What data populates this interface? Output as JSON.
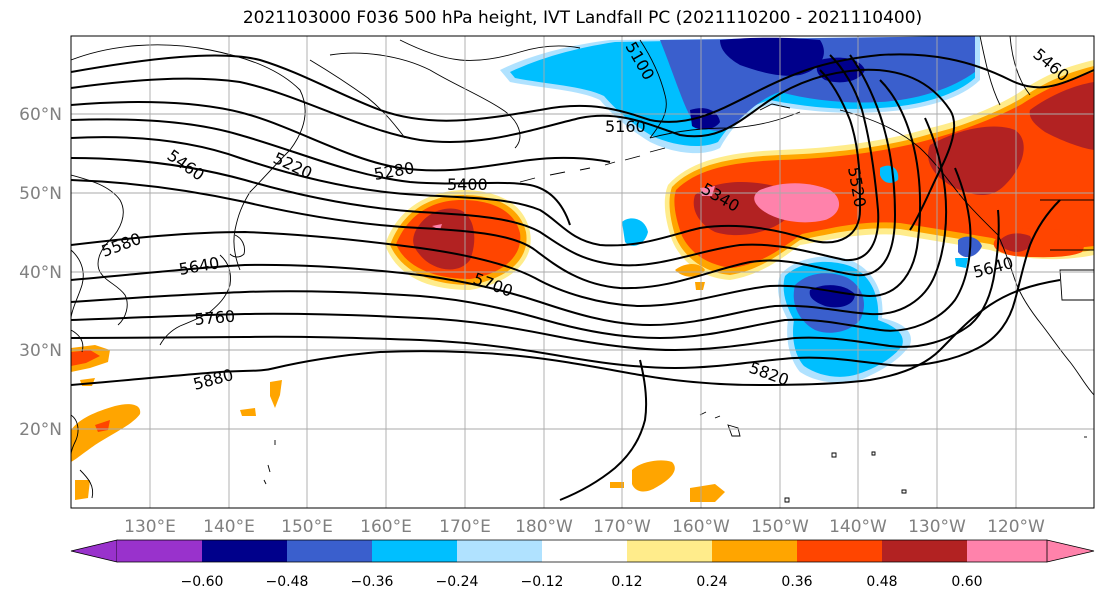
{
  "title": "2021103000 F036 500 hPa height, IVT Landfall PC (2021110200 - 2021110400)",
  "lat_labels": [
    "60°N",
    "50°N",
    "40°N",
    "30°N",
    "20°N"
  ],
  "lon_labels": [
    "130°E",
    "140°E",
    "150°E",
    "160°E",
    "170°E",
    "180°W",
    "170°W",
    "160°W",
    "150°W",
    "140°W",
    "130°W",
    "120°W"
  ],
  "contour_labels": [
    "5160",
    "5220",
    "5280",
    "5340",
    "5400",
    "5460",
    "5460",
    "5520",
    "5580",
    "5640",
    "5640",
    "5700",
    "5760",
    "5820",
    "5880",
    "5100"
  ],
  "colorbar": {
    "ticks": [
      "−0.60",
      "−0.48",
      "−0.36",
      "−0.24",
      "−0.12",
      "0.12",
      "0.24",
      "0.36",
      "0.48",
      "0.60"
    ],
    "colors": [
      "#9932cc",
      "#00008b",
      "#3a5fcd",
      "#00bfff",
      "#b0e2ff",
      "#ffffff",
      "#ffec8b",
      "#ffa500",
      "#ff4500",
      "#b22222",
      "#ff82ab"
    ]
  }
}
